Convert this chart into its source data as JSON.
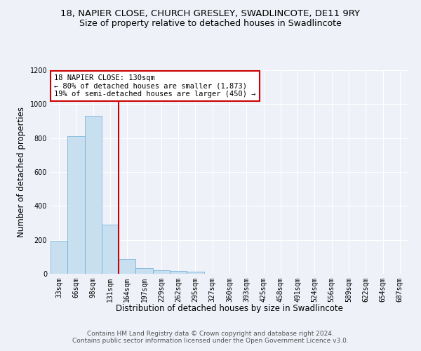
{
  "title1": "18, NAPIER CLOSE, CHURCH GRESLEY, SWADLINCOTE, DE11 9RY",
  "title2": "Size of property relative to detached houses in Swadlincote",
  "xlabel": "Distribution of detached houses by size in Swadlincote",
  "ylabel": "Number of detached properties",
  "bin_labels": [
    "33sqm",
    "66sqm",
    "98sqm",
    "131sqm",
    "164sqm",
    "197sqm",
    "229sqm",
    "262sqm",
    "295sqm",
    "327sqm",
    "360sqm",
    "393sqm",
    "425sqm",
    "458sqm",
    "491sqm",
    "524sqm",
    "556sqm",
    "589sqm",
    "622sqm",
    "654sqm",
    "687sqm"
  ],
  "bar_values": [
    193,
    810,
    930,
    290,
    85,
    35,
    20,
    18,
    12,
    0,
    0,
    0,
    0,
    0,
    0,
    0,
    0,
    0,
    0,
    0,
    0
  ],
  "bar_color": "#c8dff0",
  "bar_edge_color": "#6aaad4",
  "vline_color": "#cc0000",
  "annotation_text": "18 NAPIER CLOSE: 130sqm\n← 80% of detached houses are smaller (1,873)\n19% of semi-detached houses are larger (450) →",
  "annotation_box_color": "#ffffff",
  "annotation_box_edge_color": "#cc0000",
  "ylim": [
    0,
    1200
  ],
  "yticks": [
    0,
    200,
    400,
    600,
    800,
    1000,
    1200
  ],
  "footer_text": "Contains HM Land Registry data © Crown copyright and database right 2024.\nContains public sector information licensed under the Open Government Licence v3.0.",
  "bg_color": "#eef2f8",
  "plot_bg_color": "#eef2f8",
  "grid_color": "#ffffff",
  "title_fontsize": 9.5,
  "subtitle_fontsize": 9,
  "axis_label_fontsize": 8.5,
  "tick_fontsize": 7,
  "footer_fontsize": 6.5,
  "annotation_fontsize": 7.5
}
